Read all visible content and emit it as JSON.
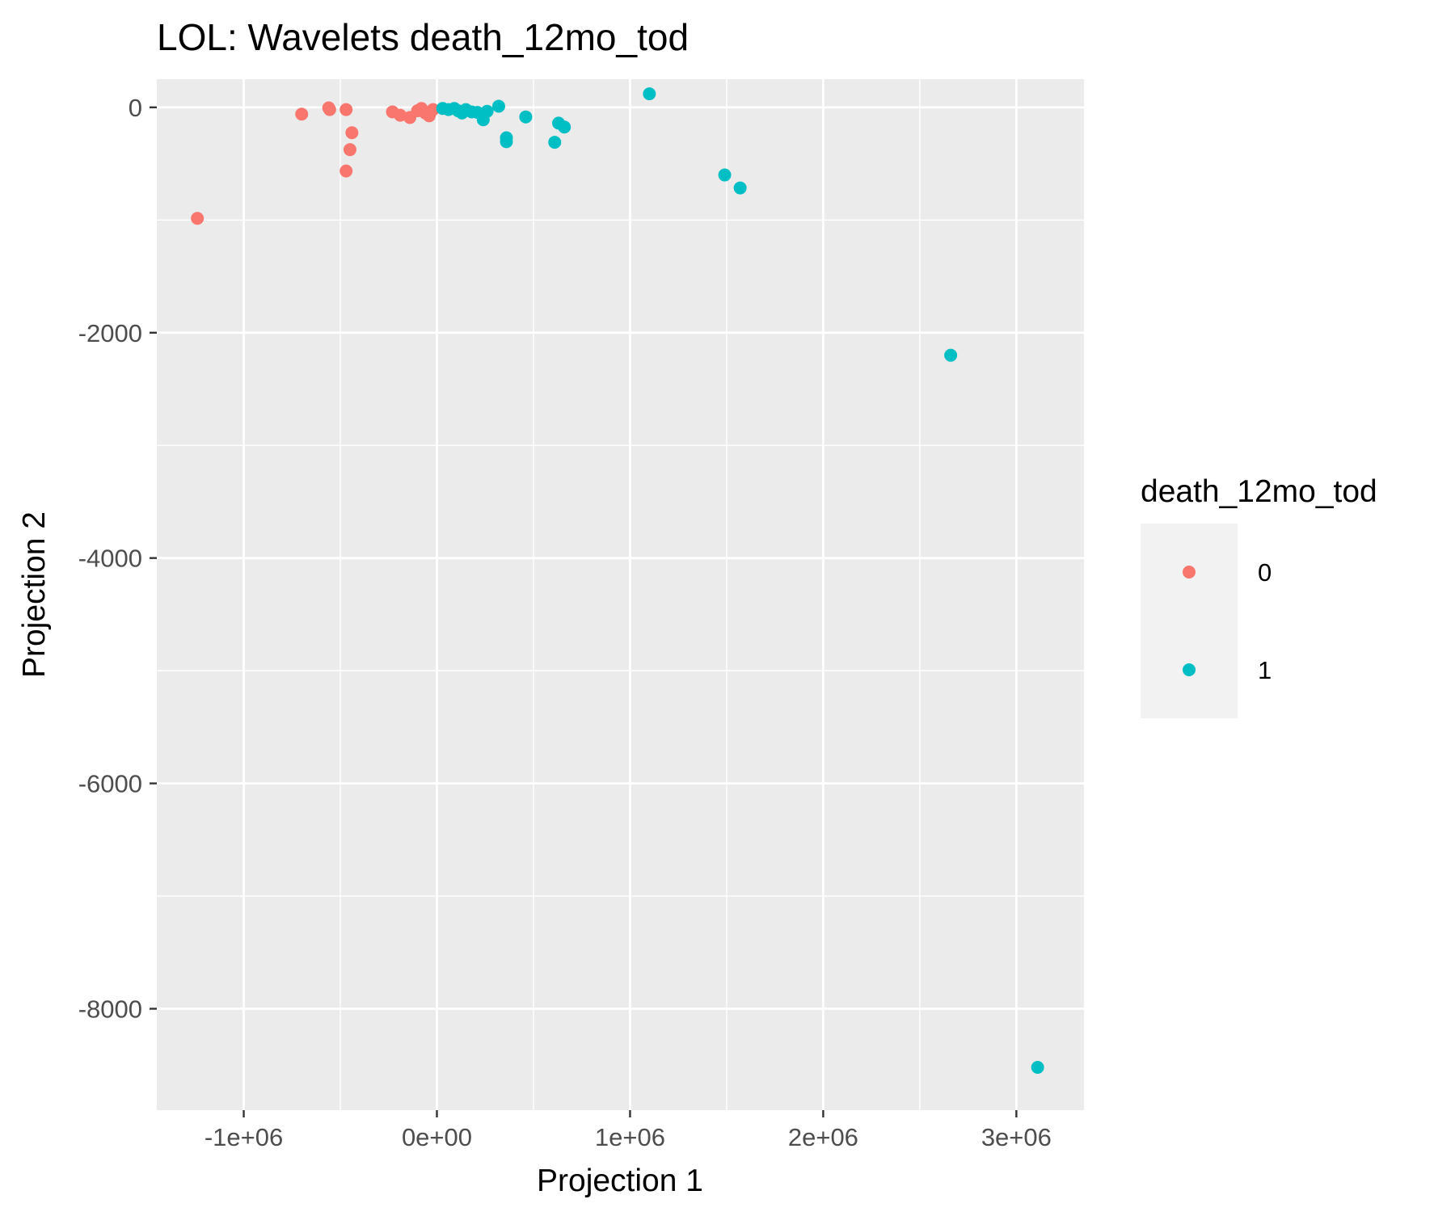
{
  "chart_data": {
    "type": "scatter",
    "title": "LOL: Wavelets death_12mo_tod",
    "xlabel": "Projection 1",
    "ylabel": "Projection 2",
    "xlim": [
      -1450000,
      3350000
    ],
    "ylim": [
      -8900000,
      250
    ],
    "ylim_note": "",
    "x_ticks": [
      {
        "value": -1000000,
        "label": "-1e+06"
      },
      {
        "value": 0,
        "label": "0e+00"
      },
      {
        "value": 1000000,
        "label": "1e+06"
      },
      {
        "value": 2000000,
        "label": "2e+06"
      },
      {
        "value": 3000000,
        "label": "3e+06"
      }
    ],
    "y_ticks": [
      {
        "value": 0,
        "label": "0"
      },
      {
        "value": -2000,
        "label": "-2000"
      },
      {
        "value": -4000,
        "label": "-4000"
      },
      {
        "value": -6000,
        "label": "-6000"
      },
      {
        "value": -8000,
        "label": "-8000"
      }
    ],
    "grid": true,
    "legend": {
      "title": "death_12mo_tod",
      "position": "right"
    },
    "colors": {
      "panel": "#ebebeb",
      "grid": "#ffffff",
      "legend_key": "#f2f2f2"
    },
    "series": [
      {
        "name": "0",
        "color": "#f8766d",
        "points": [
          {
            "x": -1240000,
            "y": -985
          },
          {
            "x": -700000,
            "y": -60
          },
          {
            "x": -560000,
            "y": -5
          },
          {
            "x": -555000,
            "y": -20
          },
          {
            "x": -470000,
            "y": -20
          },
          {
            "x": -440000,
            "y": -225
          },
          {
            "x": -450000,
            "y": -375
          },
          {
            "x": -470000,
            "y": -565
          },
          {
            "x": -230000,
            "y": -40
          },
          {
            "x": -190000,
            "y": -70
          },
          {
            "x": -140000,
            "y": -90
          },
          {
            "x": -100000,
            "y": -30
          },
          {
            "x": -80000,
            "y": -10
          },
          {
            "x": -60000,
            "y": -50
          },
          {
            "x": -40000,
            "y": -75
          },
          {
            "x": -20000,
            "y": -20
          }
        ]
      },
      {
        "name": "1",
        "color": "#00bfc4",
        "points": [
          {
            "x": 30000,
            "y": -10
          },
          {
            "x": 60000,
            "y": -20
          },
          {
            "x": 90000,
            "y": -10
          },
          {
            "x": 110000,
            "y": -30
          },
          {
            "x": 130000,
            "y": -50
          },
          {
            "x": 150000,
            "y": -20
          },
          {
            "x": 180000,
            "y": -40
          },
          {
            "x": 210000,
            "y": -45
          },
          {
            "x": 240000,
            "y": -110
          },
          {
            "x": 260000,
            "y": -35
          },
          {
            "x": 320000,
            "y": 10
          },
          {
            "x": 360000,
            "y": -270
          },
          {
            "x": 360000,
            "y": -305
          },
          {
            "x": 460000,
            "y": -85
          },
          {
            "x": 610000,
            "y": -310
          },
          {
            "x": 630000,
            "y": -140
          },
          {
            "x": 660000,
            "y": -175
          },
          {
            "x": 1100000,
            "y": 120
          },
          {
            "x": 1490000,
            "y": -600
          },
          {
            "x": 1570000,
            "y": -715
          },
          {
            "x": 2660000,
            "y": -2200
          },
          {
            "x": 3110000,
            "y": -8520
          }
        ]
      }
    ]
  }
}
